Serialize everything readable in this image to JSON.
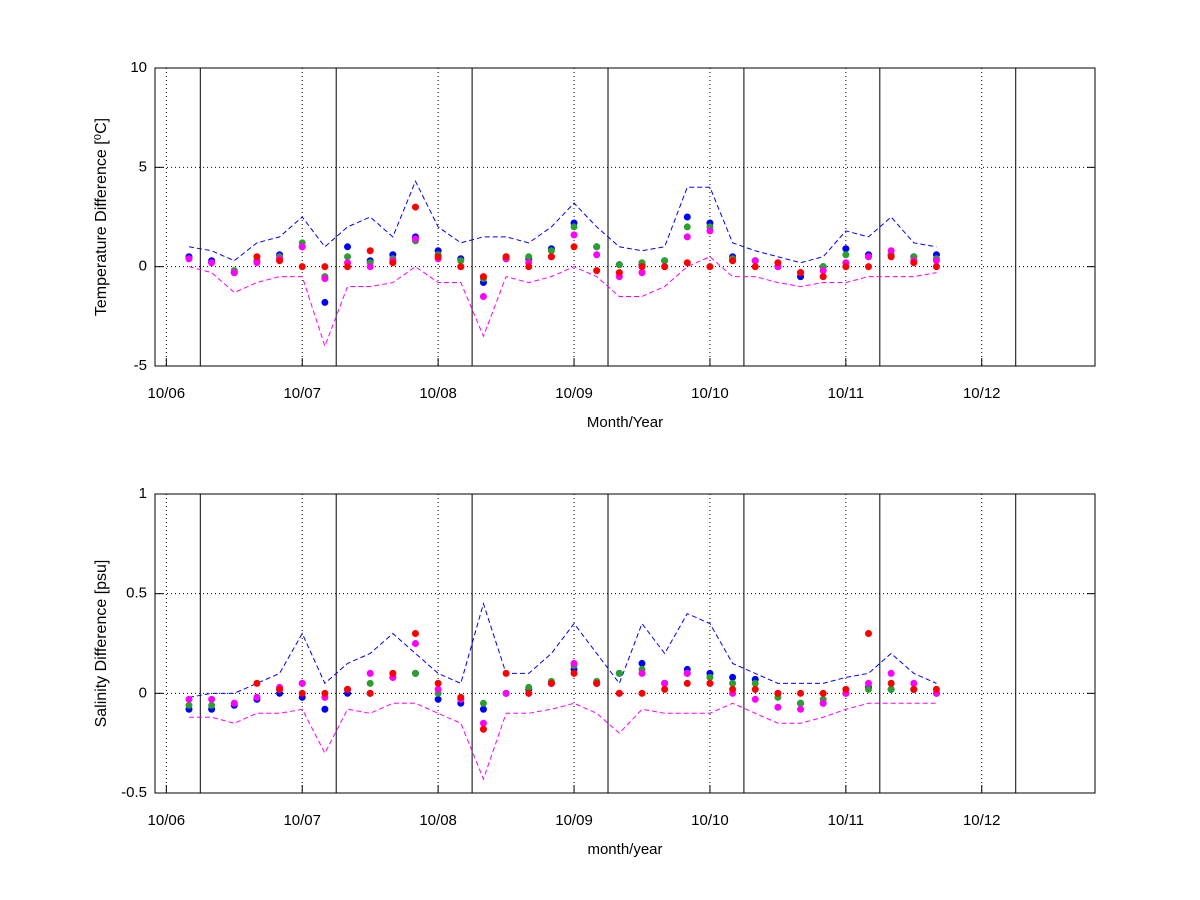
{
  "chart_data": [
    {
      "type": "line",
      "xlabel": "Month/Year",
      "ylabel": "Temperature Difference [⁰C]",
      "x": [
        "12/06",
        "02/07",
        "04/07",
        "06/07",
        "08/07",
        "10/07",
        "12/07",
        "02/08",
        "04/08",
        "06/08",
        "08/08",
        "10/08",
        "12/08",
        "02/09",
        "04/09",
        "06/09",
        "08/09",
        "10/09",
        "12/09",
        "02/10",
        "04/10",
        "06/10",
        "08/10",
        "10/10",
        "12/10",
        "02/11",
        "04/11",
        "06/11",
        "08/11",
        "10/11",
        "12/11",
        "02/12",
        "04/12",
        "06/12"
      ],
      "xlim": [
        "09/06",
        "08/13"
      ],
      "xticks": [
        "10/06",
        "10/07",
        "10/08",
        "10/09",
        "10/10",
        "10/11",
        "10/12"
      ],
      "vlines": [
        "01/07",
        "01/08",
        "01/09",
        "01/10",
        "01/11",
        "01/12",
        "01/13"
      ],
      "ylim": [
        -5,
        10
      ],
      "yticks": [
        -5,
        0,
        5,
        10
      ],
      "grid": true,
      "series": [
        {
          "color": "#0000ff",
          "style": "dashed",
          "values": [
            1.0,
            0.8,
            0.3,
            1.2,
            1.5,
            2.5,
            1.0,
            2.0,
            2.5,
            1.5,
            4.3,
            2.0,
            1.2,
            1.5,
            1.5,
            1.2,
            2.0,
            3.2,
            2.0,
            1.0,
            0.8,
            1.0,
            4.0,
            4.0,
            1.2,
            0.8,
            0.5,
            0.2,
            0.5,
            1.8,
            1.5,
            2.5,
            1.2,
            1.0
          ]
        },
        {
          "color": "#ff00ff",
          "style": "dashed",
          "values": [
            0.0,
            -0.3,
            -1.3,
            -0.8,
            -0.5,
            -0.5,
            -4.0,
            -1.0,
            -1.0,
            -0.8,
            0.0,
            -0.8,
            -0.8,
            -3.5,
            -0.5,
            -0.8,
            -0.5,
            0.0,
            -0.5,
            -1.5,
            -1.5,
            -1.0,
            0.0,
            0.5,
            -0.5,
            -0.5,
            -0.8,
            -1.0,
            -0.8,
            -0.8,
            -0.5,
            -0.5,
            -0.5,
            -0.3
          ]
        },
        {
          "color": "#0000ff",
          "style": "marker",
          "values": [
            0.5,
            0.3,
            -0.3,
            0.3,
            0.6,
            1.0,
            -1.8,
            1.0,
            0.3,
            0.6,
            1.5,
            0.8,
            0.4,
            -0.8,
            0.4,
            0.4,
            0.9,
            2.2,
            1.0,
            0.1,
            0.1,
            0.3,
            2.5,
            2.2,
            0.5,
            0.3,
            0.0,
            -0.5,
            0.0,
            0.9,
            0.6,
            0.6,
            0.5,
            0.6
          ]
        },
        {
          "color": "#2ca02c",
          "style": "marker",
          "values": [
            0.4,
            0.2,
            -0.2,
            0.3,
            0.5,
            1.2,
            -0.5,
            0.5,
            0.2,
            0.4,
            1.3,
            0.6,
            0.3,
            -0.6,
            0.5,
            0.5,
            0.8,
            2.0,
            1.0,
            0.1,
            0.2,
            0.3,
            2.0,
            2.0,
            0.4,
            0.3,
            0.0,
            -0.3,
            0.0,
            0.6,
            0.5,
            0.6,
            0.5,
            0.4
          ]
        },
        {
          "color": "#ff00ff",
          "style": "marker",
          "values": [
            0.4,
            0.2,
            -0.3,
            0.2,
            0.4,
            1.0,
            -0.6,
            0.2,
            0.0,
            0.3,
            1.4,
            0.4,
            0.0,
            -1.5,
            0.4,
            0.2,
            0.5,
            1.6,
            0.6,
            -0.5,
            -0.3,
            0.0,
            1.5,
            1.8,
            0.3,
            0.3,
            0.0,
            -0.3,
            -0.2,
            0.2,
            0.5,
            0.8,
            0.3,
            0.3
          ]
        },
        {
          "color": "#ff0000",
          "style": "marker",
          "values": [
            null,
            null,
            null,
            0.5,
            0.3,
            0.0,
            0.0,
            0.0,
            0.8,
            0.2,
            3.0,
            0.5,
            0.0,
            -0.5,
            0.5,
            0.0,
            0.5,
            1.0,
            -0.2,
            -0.3,
            0.0,
            0.0,
            0.2,
            0.0,
            0.3,
            0.0,
            0.2,
            -0.3,
            -0.5,
            0.0,
            0.0,
            0.5,
            0.2,
            0.0
          ]
        }
      ]
    },
    {
      "type": "line",
      "xlabel": "month/year",
      "ylabel": "Salinity Difference [psu]",
      "x": [
        "12/06",
        "02/07",
        "04/07",
        "06/07",
        "08/07",
        "10/07",
        "12/07",
        "02/08",
        "04/08",
        "06/08",
        "08/08",
        "10/08",
        "12/08",
        "02/09",
        "04/09",
        "06/09",
        "08/09",
        "10/09",
        "12/09",
        "02/10",
        "04/10",
        "06/10",
        "08/10",
        "10/10",
        "12/10",
        "02/11",
        "04/11",
        "06/11",
        "08/11",
        "10/11",
        "12/11",
        "02/12",
        "04/12",
        "06/12"
      ],
      "xlim": [
        "09/06",
        "08/13"
      ],
      "xticks": [
        "10/06",
        "10/07",
        "10/08",
        "10/09",
        "10/10",
        "10/11",
        "10/12"
      ],
      "vlines": [
        "01/07",
        "01/08",
        "01/09",
        "01/10",
        "01/11",
        "01/12",
        "01/13"
      ],
      "ylim": [
        -0.5,
        1
      ],
      "yticks": [
        -0.5,
        0,
        0.5,
        1
      ],
      "grid": true,
      "series": [
        {
          "color": "#0000ff",
          "style": "dashed",
          "values": [
            -0.02,
            0.0,
            0.0,
            0.05,
            0.1,
            0.3,
            0.05,
            0.15,
            0.2,
            0.3,
            0.2,
            0.1,
            0.05,
            0.45,
            0.1,
            0.1,
            0.2,
            0.35,
            0.2,
            0.05,
            0.35,
            0.2,
            0.4,
            0.35,
            0.15,
            0.1,
            0.05,
            0.05,
            0.05,
            0.08,
            0.1,
            0.2,
            0.1,
            0.05
          ]
        },
        {
          "color": "#ff00ff",
          "style": "dashed",
          "values": [
            -0.12,
            -0.12,
            -0.15,
            -0.1,
            -0.1,
            -0.08,
            -0.3,
            -0.08,
            -0.1,
            -0.05,
            -0.05,
            -0.1,
            -0.15,
            -0.43,
            -0.1,
            -0.1,
            -0.08,
            -0.05,
            -0.1,
            -0.2,
            -0.08,
            -0.1,
            -0.1,
            -0.1,
            -0.05,
            -0.1,
            -0.15,
            -0.15,
            -0.12,
            -0.08,
            -0.05,
            -0.05,
            -0.05,
            -0.05
          ]
        },
        {
          "color": "#0000ff",
          "style": "marker",
          "values": [
            -0.08,
            -0.08,
            -0.06,
            -0.03,
            0.0,
            -0.02,
            -0.08,
            0.0,
            0.0,
            0.08,
            0.1,
            -0.03,
            -0.05,
            -0.08,
            0.0,
            0.02,
            0.05,
            0.12,
            0.05,
            0.1,
            0.15,
            0.05,
            0.12,
            0.1,
            0.08,
            0.07,
            0.0,
            -0.05,
            -0.05,
            0.0,
            0.03,
            0.02,
            0.02,
            0.0
          ]
        },
        {
          "color": "#2ca02c",
          "style": "marker",
          "values": [
            -0.06,
            -0.06,
            -0.05,
            -0.02,
            0.02,
            0.05,
            -0.02,
            0.02,
            0.05,
            0.1,
            0.1,
            0.0,
            -0.03,
            -0.05,
            0.0,
            0.03,
            0.06,
            0.14,
            0.06,
            0.1,
            0.12,
            0.05,
            0.1,
            0.08,
            0.05,
            0.05,
            -0.02,
            -0.05,
            -0.03,
            0.0,
            0.02,
            0.02,
            0.02,
            0.0
          ]
        },
        {
          "color": "#ff00ff",
          "style": "marker",
          "values": [
            -0.03,
            -0.03,
            -0.05,
            -0.02,
            0.03,
            0.05,
            -0.02,
            0.02,
            0.1,
            0.08,
            0.25,
            0.02,
            -0.03,
            -0.15,
            0.0,
            0.0,
            0.05,
            0.15,
            0.05,
            0.0,
            0.1,
            0.05,
            0.1,
            0.05,
            0.0,
            -0.03,
            -0.07,
            -0.08,
            -0.05,
            0.0,
            0.05,
            0.1,
            0.05,
            0.0
          ]
        },
        {
          "color": "#ff0000",
          "style": "marker",
          "values": [
            null,
            null,
            null,
            0.05,
            0.02,
            0.0,
            0.0,
            0.02,
            0.0,
            0.1,
            0.3,
            0.05,
            -0.02,
            -0.18,
            0.1,
            0.0,
            0.05,
            0.1,
            0.05,
            0.0,
            0.0,
            0.02,
            0.05,
            0.05,
            0.02,
            0.02,
            0.0,
            0.0,
            0.0,
            0.02,
            0.3,
            0.05,
            0.02,
            0.02
          ]
        }
      ]
    }
  ]
}
